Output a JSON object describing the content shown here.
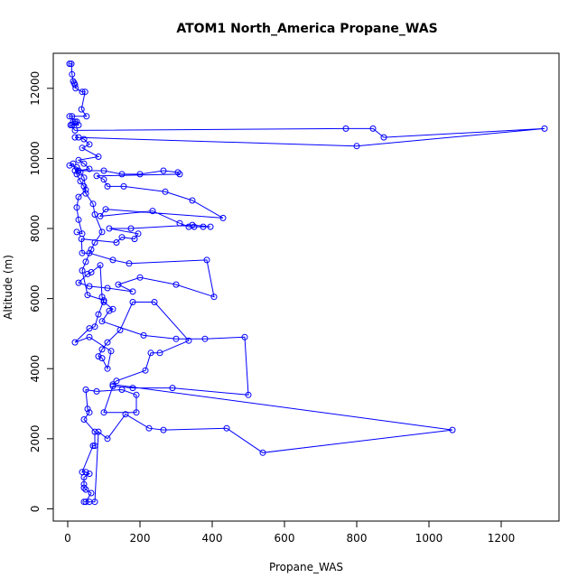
{
  "chart_data": {
    "type": "line",
    "title": "ATOM1 North_America Propane_WAS",
    "xlabel": "Propane_WAS",
    "ylabel": "Altitude (m)",
    "xlim": [
      -40,
      1360
    ],
    "ylim": [
      -350,
      13000
    ],
    "xticks": [
      0,
      200,
      400,
      600,
      800,
      1000,
      1200
    ],
    "yticks": [
      0,
      2000,
      4000,
      6000,
      8000,
      10000,
      12000
    ],
    "grid": false,
    "markers": "open-circle",
    "series": [
      {
        "color": "#0000ff",
        "points": [
          [
            5,
            12700
          ],
          [
            10,
            12700
          ],
          [
            12,
            12400
          ],
          [
            15,
            12200
          ],
          [
            18,
            12150
          ],
          [
            20,
            12100
          ],
          [
            22,
            12000
          ],
          [
            40,
            11900
          ],
          [
            48,
            11900
          ],
          [
            38,
            11400
          ],
          [
            52,
            11200
          ],
          [
            5,
            11200
          ],
          [
            12,
            11200
          ],
          [
            15,
            11050
          ],
          [
            20,
            11050
          ],
          [
            25,
            11050
          ],
          [
            30,
            10950
          ],
          [
            12,
            10950
          ],
          [
            8,
            10950
          ],
          [
            20,
            10800
          ],
          [
            770,
            10850
          ],
          [
            845,
            10850
          ],
          [
            875,
            10600
          ],
          [
            1320,
            10850
          ],
          [
            800,
            10350
          ],
          [
            20,
            10600
          ],
          [
            30,
            10600
          ],
          [
            45,
            10550
          ],
          [
            60,
            10400
          ],
          [
            40,
            10300
          ],
          [
            85,
            10050
          ],
          [
            30,
            9950
          ],
          [
            45,
            9850
          ],
          [
            60,
            9700
          ],
          [
            30,
            9650
          ],
          [
            20,
            9650
          ],
          [
            100,
            9650
          ],
          [
            150,
            9550
          ],
          [
            200,
            9550
          ],
          [
            265,
            9650
          ],
          [
            305,
            9600
          ],
          [
            310,
            9550
          ],
          [
            80,
            9500
          ],
          [
            100,
            9400
          ],
          [
            110,
            9200
          ],
          [
            155,
            9200
          ],
          [
            270,
            9050
          ],
          [
            345,
            8800
          ],
          [
            430,
            8300
          ],
          [
            105,
            8550
          ],
          [
            90,
            8350
          ],
          [
            235,
            8500
          ],
          [
            310,
            8150
          ],
          [
            335,
            8050
          ],
          [
            350,
            8050
          ],
          [
            375,
            8050
          ],
          [
            395,
            8050
          ],
          [
            345,
            8100
          ],
          [
            175,
            8000
          ],
          [
            115,
            8000
          ],
          [
            195,
            7850
          ],
          [
            185,
            7700
          ],
          [
            150,
            7750
          ],
          [
            135,
            7600
          ],
          [
            38,
            7700
          ],
          [
            40,
            7300
          ],
          [
            60,
            7300
          ],
          [
            125,
            7100
          ],
          [
            170,
            7000
          ],
          [
            385,
            7100
          ],
          [
            405,
            6050
          ],
          [
            300,
            6400
          ],
          [
            200,
            6600
          ],
          [
            140,
            6400
          ],
          [
            180,
            6200
          ],
          [
            110,
            6300
          ],
          [
            60,
            6350
          ],
          [
            30,
            6450
          ],
          [
            55,
            6700
          ],
          [
            65,
            6750
          ],
          [
            90,
            6950
          ],
          [
            95,
            6050
          ],
          [
            100,
            5900
          ],
          [
            125,
            5700
          ],
          [
            115,
            5650
          ],
          [
            95,
            5350
          ],
          [
            210,
            4950
          ],
          [
            300,
            4850
          ],
          [
            380,
            4850
          ],
          [
            490,
            4900
          ],
          [
            500,
            3250
          ],
          [
            290,
            3450
          ],
          [
            180,
            3450
          ],
          [
            125,
            3500
          ],
          [
            100,
            2750
          ],
          [
            190,
            2750
          ],
          [
            190,
            3250
          ],
          [
            150,
            3400
          ],
          [
            80,
            3350
          ],
          [
            50,
            3400
          ],
          [
            55,
            2850
          ],
          [
            60,
            2750
          ],
          [
            45,
            2550
          ],
          [
            75,
            2200
          ],
          [
            75,
            1800
          ],
          [
            70,
            1800
          ],
          [
            40,
            1050
          ],
          [
            50,
            1050
          ],
          [
            60,
            1000
          ],
          [
            45,
            900
          ],
          [
            45,
            700
          ],
          [
            45,
            600
          ],
          [
            50,
            550
          ],
          [
            65,
            450
          ],
          [
            50,
            200
          ],
          [
            45,
            200
          ],
          [
            60,
            200
          ],
          [
            75,
            200
          ],
          [
            85,
            2200
          ],
          [
            110,
            2000
          ],
          [
            160,
            2700
          ],
          [
            225,
            2300
          ],
          [
            265,
            2250
          ],
          [
            440,
            2300
          ],
          [
            540,
            1600
          ],
          [
            1065,
            2250
          ],
          [
            125,
            3550
          ],
          [
            135,
            3650
          ],
          [
            215,
            3950
          ],
          [
            230,
            4450
          ],
          [
            255,
            4450
          ],
          [
            335,
            4800
          ],
          [
            240,
            5900
          ],
          [
            180,
            5900
          ],
          [
            145,
            5100
          ],
          [
            110,
            4750
          ],
          [
            95,
            4550
          ],
          [
            85,
            4350
          ],
          [
            95,
            4300
          ],
          [
            110,
            4000
          ],
          [
            120,
            4500
          ],
          [
            60,
            4900
          ],
          [
            20,
            4750
          ],
          [
            60,
            5150
          ],
          [
            75,
            5200
          ],
          [
            85,
            5550
          ],
          [
            100,
            5950
          ],
          [
            55,
            6100
          ],
          [
            40,
            6800
          ],
          [
            50,
            7050
          ],
          [
            65,
            7400
          ],
          [
            75,
            7600
          ],
          [
            95,
            7900
          ],
          [
            75,
            8400
          ],
          [
            70,
            8700
          ],
          [
            50,
            9000
          ],
          [
            45,
            9200
          ],
          [
            35,
            9350
          ],
          [
            25,
            9550
          ],
          [
            15,
            9850
          ],
          [
            5,
            9800
          ],
          [
            25,
            9750
          ],
          [
            35,
            9600
          ],
          [
            45,
            9450
          ],
          [
            50,
            9100
          ],
          [
            30,
            8900
          ],
          [
            25,
            8600
          ],
          [
            30,
            8250
          ],
          [
            40,
            7850
          ],
          [
            25,
            7900
          ]
        ]
      }
    ]
  }
}
